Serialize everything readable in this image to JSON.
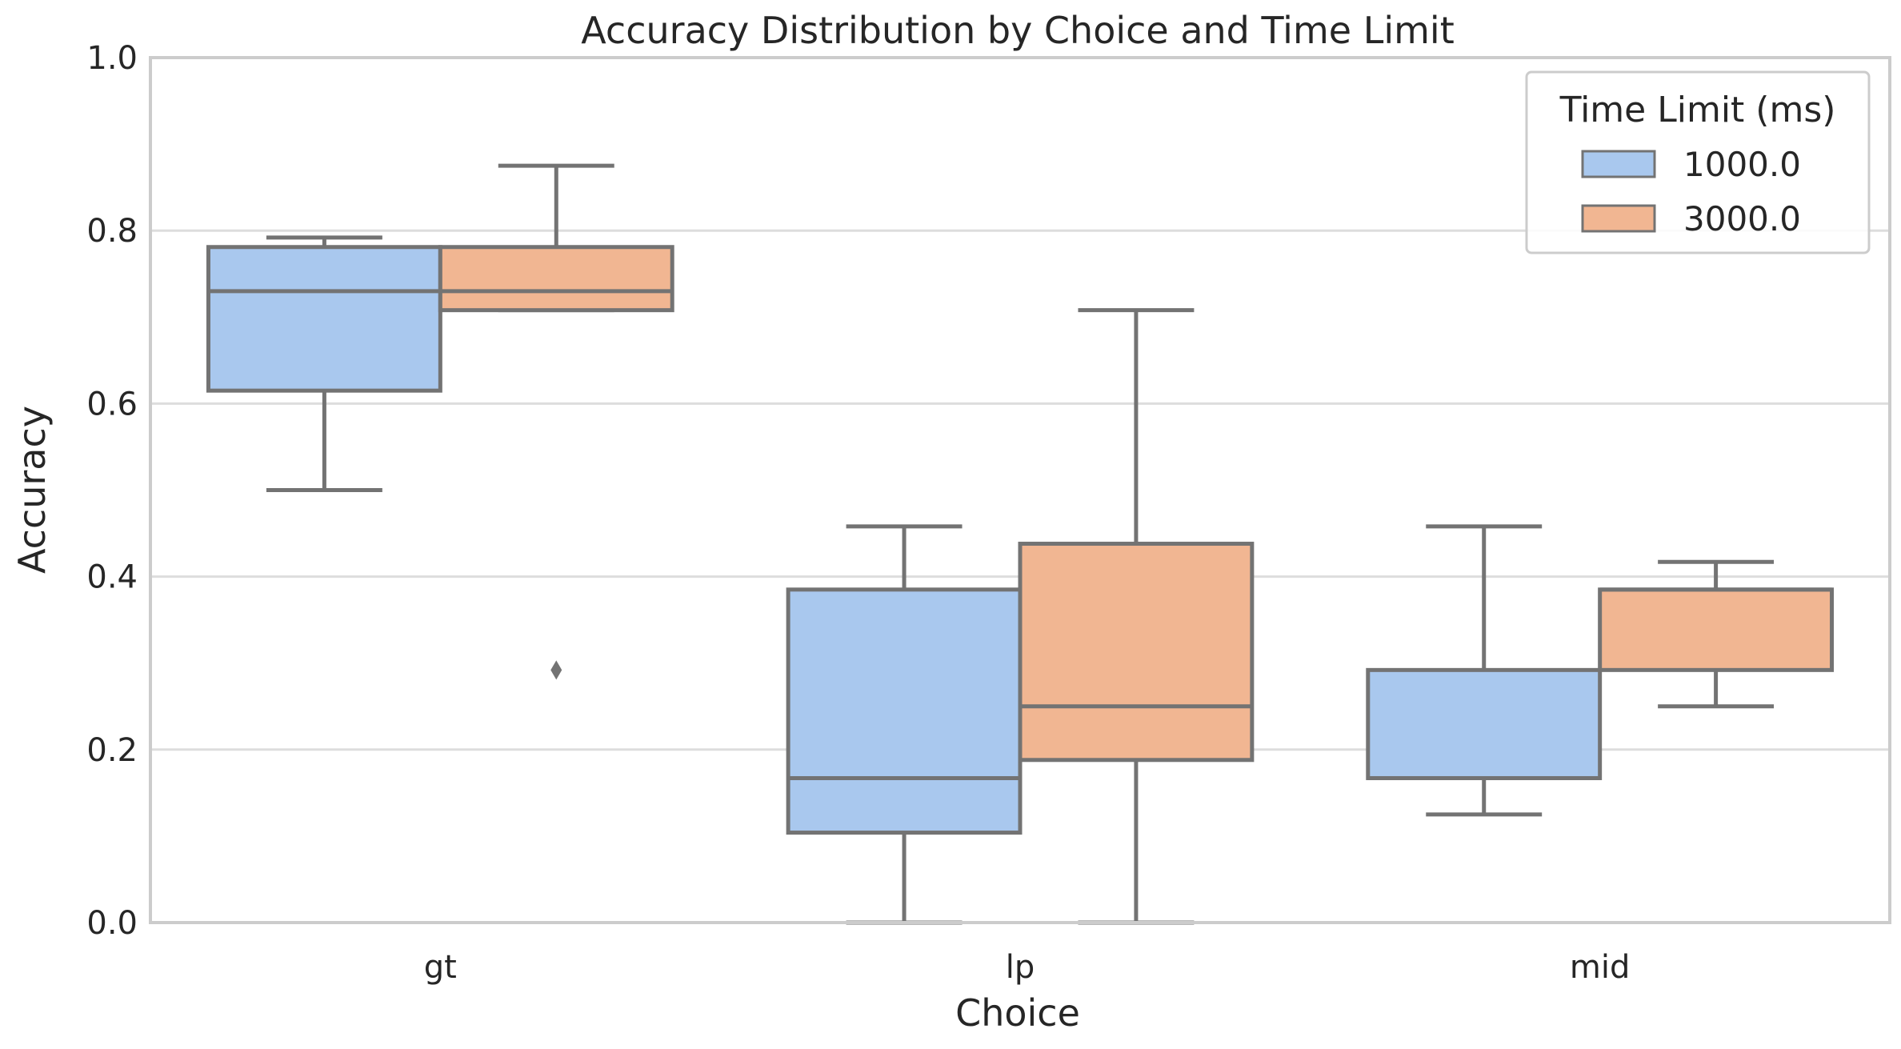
{
  "chart_data": {
    "type": "box",
    "title": "Accuracy Distribution by Choice and Time Limit",
    "xlabel": "Choice",
    "ylabel": "Accuracy",
    "ylim": [
      0.0,
      1.0
    ],
    "yticks": [
      "0.0",
      "0.2",
      "0.4",
      "0.6",
      "0.8",
      "1.0"
    ],
    "categories": [
      "gt",
      "lp",
      "mid"
    ],
    "grid": "horizontal",
    "legend": {
      "title": "Time Limit (ms)",
      "placement": "top-right"
    },
    "series": [
      {
        "name": "1000.0",
        "color": "#a9c8ee",
        "boxes": [
          {
            "category": "gt",
            "whisker_low": 0.5,
            "q1": 0.615,
            "median": 0.73,
            "q3": 0.781,
            "whisker_high": 0.792,
            "outliers": []
          },
          {
            "category": "lp",
            "whisker_low": 0.0,
            "q1": 0.104,
            "median": 0.167,
            "q3": 0.385,
            "whisker_high": 0.458,
            "outliers": []
          },
          {
            "category": "mid",
            "whisker_low": 0.125,
            "q1": 0.167,
            "median": 0.167,
            "q3": 0.292,
            "whisker_high": 0.458,
            "outliers": []
          }
        ]
      },
      {
        "name": "3000.0",
        "color": "#f1b692",
        "boxes": [
          {
            "category": "gt",
            "whisker_low": 0.708,
            "q1": 0.708,
            "median": 0.73,
            "q3": 0.781,
            "whisker_high": 0.875,
            "outliers": [
              0.292
            ]
          },
          {
            "category": "lp",
            "whisker_low": 0.0,
            "q1": 0.188,
            "median": 0.25,
            "q3": 0.438,
            "whisker_high": 0.708,
            "outliers": []
          },
          {
            "category": "mid",
            "whisker_low": 0.25,
            "q1": 0.292,
            "median": 0.385,
            "q3": 0.385,
            "whisker_high": 0.417,
            "outliers": []
          }
        ]
      }
    ]
  }
}
